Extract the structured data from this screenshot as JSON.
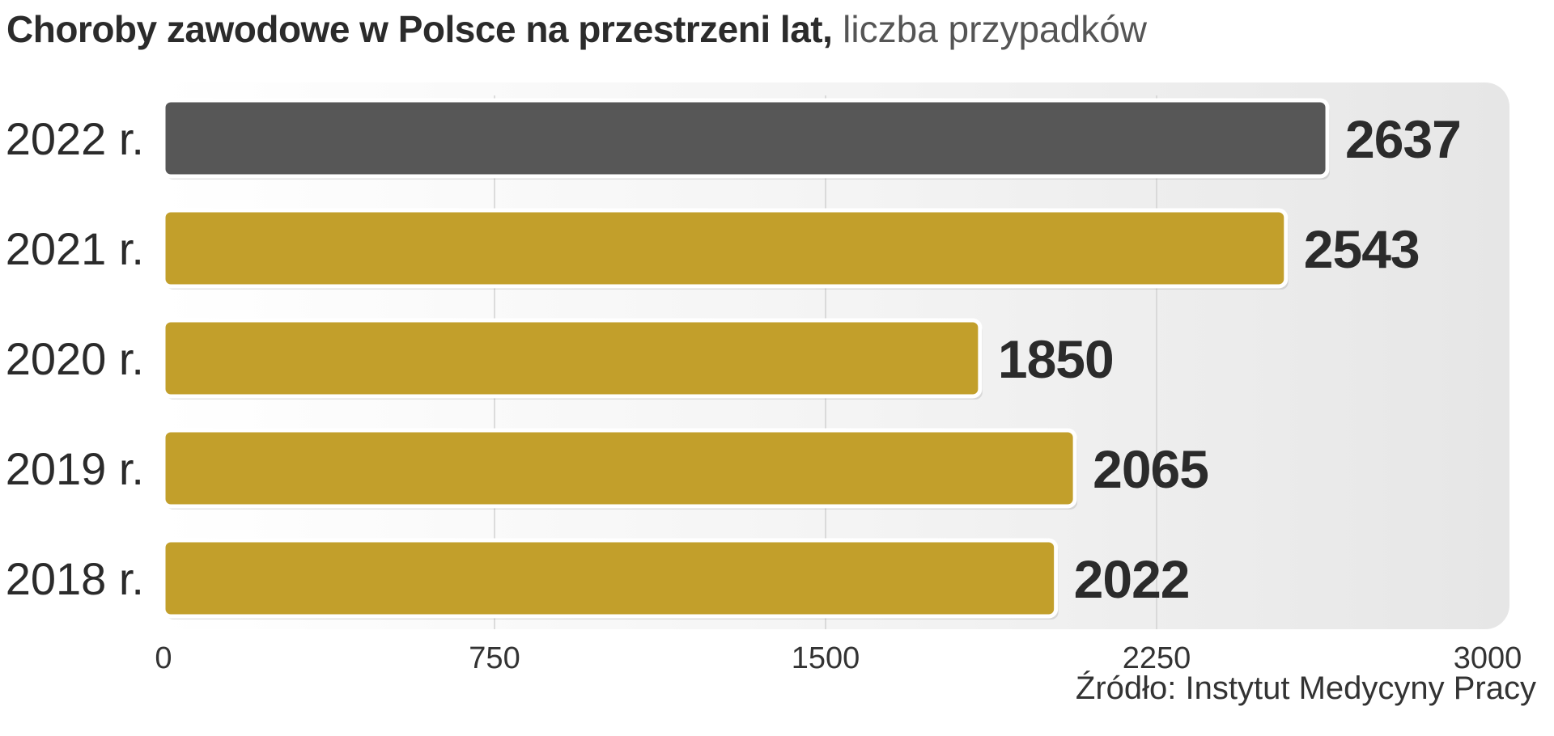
{
  "title": {
    "bold": "Choroby zawodowe w Polsce na przestrzeni lat,",
    "light": "liczba przypadków"
  },
  "source": "Źródło: Instytut Medycyny Pracy",
  "colors": {
    "highlight_bar": "#575757",
    "bar": "#c29f2b",
    "bar_outline": "#ffffff",
    "grid": "#d2d2d2",
    "value_label": "#2b2b2b",
    "axis_text": "#333333"
  },
  "chart_data": {
    "type": "bar",
    "orientation": "horizontal",
    "title": "Choroby zawodowe w Polsce na przestrzeni lat, liczba przypadków",
    "categories": [
      "2022 r.",
      "2021 r.",
      "2020 r.",
      "2019 r.",
      "2018 r."
    ],
    "values": [
      2637,
      2543,
      1850,
      2065,
      2022
    ],
    "value_labels": [
      "2637",
      "2543",
      "1850",
      "2065",
      "2022"
    ],
    "highlight_index": 0,
    "xlim": [
      0,
      3000
    ],
    "xticks": [
      0,
      750,
      1500,
      2250,
      3000
    ],
    "xtick_labels": [
      "0",
      "750",
      "1500",
      "2250",
      "3000"
    ],
    "xlabel": "",
    "ylabel": "",
    "grid": true,
    "legend": "none"
  }
}
